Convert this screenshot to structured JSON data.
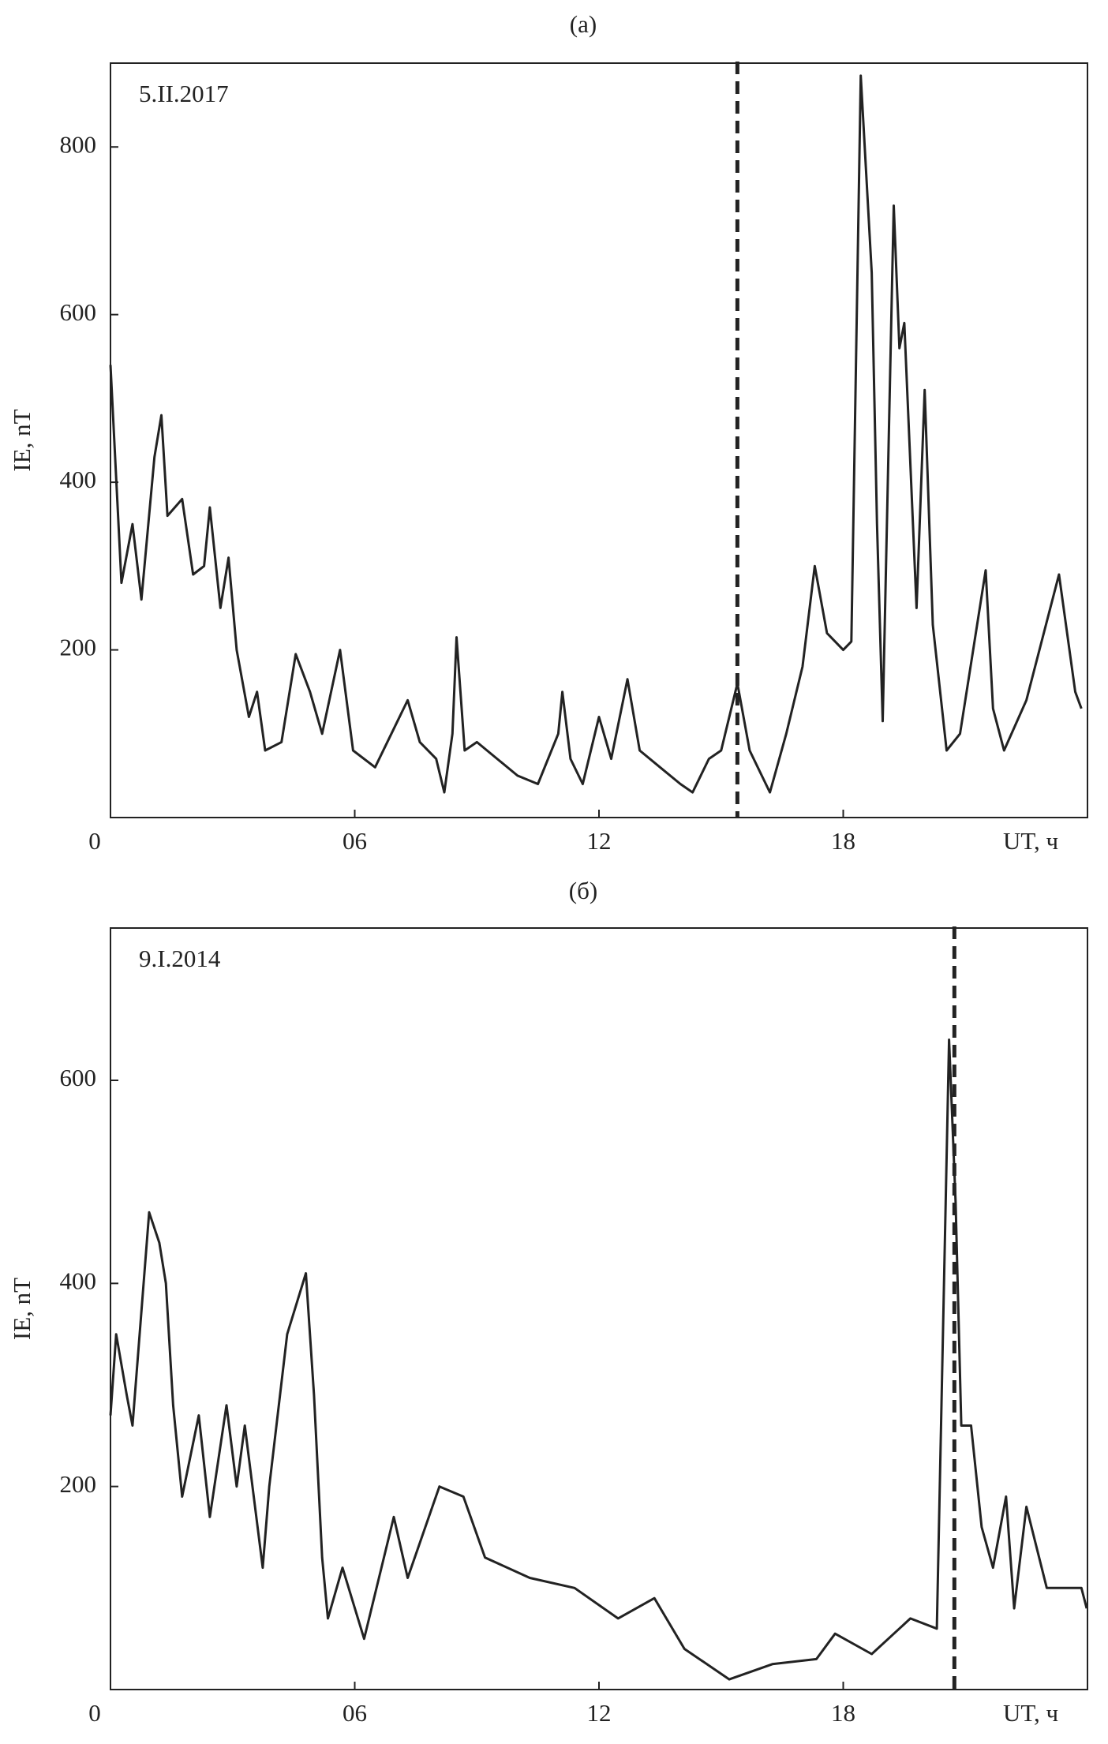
{
  "chart_data": [
    {
      "type": "line",
      "title": "(a)",
      "annotation": "5.II.2017",
      "ylabel": "IE, nT",
      "xlabel": "UT, ч",
      "xlim": [
        0,
        24
      ],
      "ylim": [
        0,
        900
      ],
      "xticks": [
        0,
        {
          "value": 6,
          "label": "06"
        },
        12,
        18
      ],
      "yticks": [
        200,
        400,
        600,
        800
      ],
      "vline": 15.4,
      "series": [
        {
          "color": "#222222",
          "x": [
            0,
            0.27,
            0.54,
            0.76,
            1.08,
            1.25,
            1.4,
            1.76,
            2.03,
            2.3,
            2.44,
            2.7,
            2.9,
            3.1,
            3.4,
            3.6,
            3.8,
            4.2,
            4.55,
            4.9,
            5.2,
            5.64,
            5.96,
            6.5,
            7,
            7.3,
            7.6,
            8,
            8.2,
            8.4,
            8.5,
            8.7,
            9,
            9.5,
            10,
            10.5,
            11,
            11.1,
            11.3,
            11.6,
            12,
            12.3,
            12.7,
            13,
            13.5,
            14,
            14.3,
            14.7,
            15,
            15.4,
            15.7,
            16,
            16.2,
            16.6,
            17,
            17.3,
            17.6,
            18,
            18.2,
            18.43,
            18.7,
            18.83,
            18.97,
            19.24,
            19.38,
            19.5,
            19.8,
            20,
            20.2,
            20.54,
            20.87,
            21.5,
            21.68,
            21.95,
            22.5,
            23.3,
            23.7,
            23.85
          ],
          "values": [
            540,
            280,
            350,
            260,
            430,
            480,
            360,
            380,
            290,
            300,
            370,
            250,
            310,
            200,
            120,
            150,
            80,
            90,
            195,
            150,
            100,
            200,
            80,
            60,
            110,
            140,
            90,
            70,
            30,
            100,
            215,
            80,
            90,
            70,
            50,
            40,
            100,
            150,
            70,
            40,
            120,
            70,
            165,
            80,
            60,
            40,
            30,
            70,
            80,
            160,
            80,
            50,
            30,
            100,
            180,
            300,
            220,
            200,
            210,
            885,
            650,
            350,
            115,
            730,
            560,
            590,
            250,
            510,
            230,
            80,
            100,
            295,
            130,
            80,
            140,
            290,
            150,
            130
          ]
        }
      ]
    },
    {
      "type": "line",
      "title": "(б)",
      "annotation": "9.I.2014",
      "ylabel": "IE, nT",
      "xlabel": "UT, ч",
      "xlim": [
        0,
        24
      ],
      "ylim": [
        0,
        750
      ],
      "xticks": [
        0,
        {
          "value": 6,
          "label": "06"
        },
        12,
        18
      ],
      "yticks": [
        200,
        400,
        600
      ],
      "vline": 20.73,
      "series": [
        {
          "color": "#222222",
          "x": [
            0,
            0.14,
            0.4,
            0.54,
            0.95,
            1.2,
            1.36,
            1.54,
            1.76,
            2.17,
            2.44,
            2.85,
            3.1,
            3.3,
            3.74,
            3.9,
            4.34,
            4.8,
            5.0,
            5.2,
            5.34,
            5.7,
            6.23,
            6.96,
            7.3,
            8.08,
            8.67,
            9.2,
            10.3,
            11.4,
            12.47,
            13.36,
            14.1,
            15.2,
            16.26,
            17.34,
            17.8,
            18.7,
            19.65,
            20.3,
            20.6,
            20.76,
            20.9,
            21.14,
            21.4,
            21.68,
            22.0,
            22.2,
            22.5,
            23.0,
            23.85,
            23.98
          ],
          "values": [
            270,
            350,
            290,
            260,
            470,
            440,
            400,
            280,
            190,
            270,
            170,
            280,
            200,
            260,
            120,
            200,
            350,
            410,
            290,
            130,
            70,
            120,
            50,
            170,
            110,
            200,
            190,
            130,
            110,
            100,
            70,
            90,
            40,
            10,
            25,
            30,
            55,
            35,
            70,
            60,
            640,
            480,
            260,
            260,
            160,
            120,
            190,
            80,
            180,
            100,
            100,
            80
          ]
        }
      ]
    }
  ]
}
